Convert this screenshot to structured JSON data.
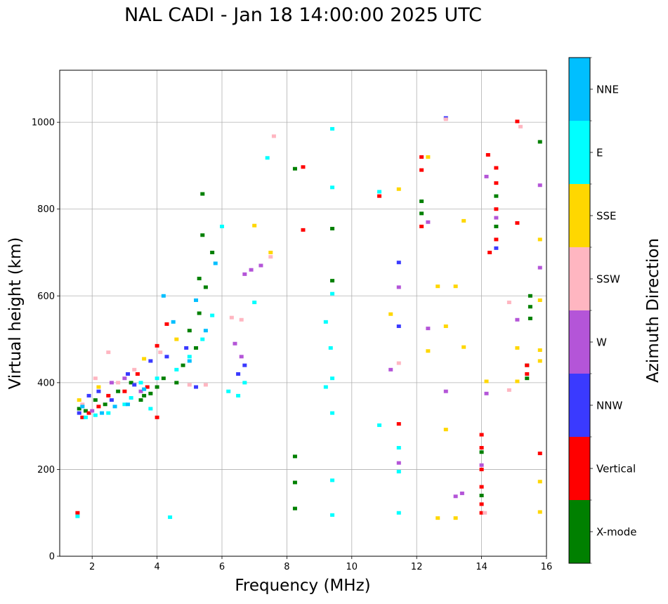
{
  "chart_data": {
    "type": "scatter",
    "title": "NAL CADI - Jan 18 14:00:00 2025 UTC",
    "xlabel": "Frequency (MHz)",
    "ylabel": "Virtual height (km)",
    "xlim": [
      1,
      16
    ],
    "ylim": [
      0,
      1120
    ],
    "xticks": [
      2,
      4,
      6,
      8,
      10,
      12,
      14,
      16
    ],
    "yticks": [
      0,
      200,
      400,
      600,
      800,
      1000
    ],
    "grid": true,
    "colorbar": {
      "label": "Azimuth Direction",
      "placement": "right",
      "categories": [
        "X-mode",
        "Vertical",
        "NNW",
        "W",
        "SSW",
        "SSE",
        "E",
        "NNE"
      ],
      "colors": [
        "#008000",
        "#ff0000",
        "#3a3aff",
        "#b455d8",
        "#ffb6c1",
        "#ffd700",
        "#00ffff",
        "#00bfff"
      ]
    },
    "series": [
      {
        "name": "X-mode",
        "points": [
          [
            1.6,
            340
          ],
          [
            1.8,
            335
          ],
          [
            2.1,
            360
          ],
          [
            2.4,
            350
          ],
          [
            2.8,
            380
          ],
          [
            3.2,
            400
          ],
          [
            3.5,
            360
          ],
          [
            3.6,
            370
          ],
          [
            3.8,
            375
          ],
          [
            4.0,
            390
          ],
          [
            4.2,
            410
          ],
          [
            4.6,
            400
          ],
          [
            4.8,
            440
          ],
          [
            5.0,
            520
          ],
          [
            5.2,
            480
          ],
          [
            5.3,
            560
          ],
          [
            5.5,
            620
          ],
          [
            5.7,
            700
          ],
          [
            5.4,
            740
          ],
          [
            5.4,
            835
          ],
          [
            5.3,
            640
          ],
          [
            8.25,
            893
          ],
          [
            8.25,
            230
          ],
          [
            8.25,
            170
          ],
          [
            8.25,
            110
          ],
          [
            9.4,
            755
          ],
          [
            9.4,
            635
          ],
          [
            12.15,
            818
          ],
          [
            12.15,
            790
          ],
          [
            14.0,
            240
          ],
          [
            14.0,
            140
          ],
          [
            14.45,
            830
          ],
          [
            14.45,
            760
          ],
          [
            15.5,
            575
          ],
          [
            15.5,
            600
          ],
          [
            15.5,
            548
          ],
          [
            15.4,
            410
          ],
          [
            15.4,
            440
          ],
          [
            15.8,
            955
          ]
        ]
      },
      {
        "name": "Vertical",
        "points": [
          [
            1.55,
            100
          ],
          [
            1.7,
            320
          ],
          [
            1.9,
            330
          ],
          [
            2.2,
            345
          ],
          [
            2.5,
            370
          ],
          [
            3.0,
            380
          ],
          [
            3.4,
            420
          ],
          [
            3.7,
            390
          ],
          [
            4.0,
            320
          ],
          [
            4.0,
            485
          ],
          [
            4.3,
            535
          ],
          [
            8.5,
            897
          ],
          [
            8.5,
            752
          ],
          [
            10.85,
            830
          ],
          [
            11.45,
            305
          ],
          [
            12.15,
            920
          ],
          [
            12.15,
            890
          ],
          [
            12.15,
            760
          ],
          [
            14.0,
            280
          ],
          [
            14.0,
            250
          ],
          [
            14.0,
            200
          ],
          [
            14.0,
            160
          ],
          [
            14.0,
            120
          ],
          [
            14.0,
            100
          ],
          [
            14.2,
            925
          ],
          [
            14.45,
            895
          ],
          [
            14.45,
            860
          ],
          [
            14.45,
            800
          ],
          [
            14.45,
            730
          ],
          [
            14.25,
            700
          ],
          [
            15.1,
            1002
          ],
          [
            15.1,
            768
          ],
          [
            15.4,
            440
          ],
          [
            15.4,
            420
          ],
          [
            15.8,
            237
          ]
        ]
      },
      {
        "name": "NNW",
        "points": [
          [
            1.6,
            330
          ],
          [
            1.9,
            370
          ],
          [
            2.2,
            380
          ],
          [
            2.6,
            360
          ],
          [
            3.1,
            420
          ],
          [
            3.3,
            395
          ],
          [
            3.8,
            450
          ],
          [
            4.3,
            460
          ],
          [
            4.9,
            480
          ],
          [
            5.2,
            390
          ],
          [
            6.5,
            420
          ],
          [
            6.7,
            440
          ],
          [
            11.45,
            530
          ],
          [
            11.45,
            677
          ],
          [
            12.9,
            1010
          ],
          [
            14.45,
            710
          ]
        ]
      },
      {
        "name": "W",
        "points": [
          [
            2.0,
            335
          ],
          [
            2.6,
            400
          ],
          [
            3.0,
            410
          ],
          [
            3.5,
            380
          ],
          [
            6.4,
            490
          ],
          [
            6.6,
            460
          ],
          [
            6.7,
            650
          ],
          [
            6.9,
            660
          ],
          [
            7.2,
            670
          ],
          [
            11.2,
            430
          ],
          [
            11.45,
            620
          ],
          [
            11.45,
            215
          ],
          [
            12.35,
            525
          ],
          [
            12.35,
            770
          ],
          [
            12.9,
            380
          ],
          [
            13.2,
            138
          ],
          [
            13.4,
            145
          ],
          [
            14.0,
            210
          ],
          [
            14.15,
            375
          ],
          [
            14.15,
            875
          ],
          [
            14.45,
            780
          ],
          [
            15.1,
            545
          ],
          [
            15.8,
            665
          ],
          [
            15.8,
            855
          ]
        ]
      },
      {
        "name": "SSW",
        "points": [
          [
            1.7,
            350
          ],
          [
            2.1,
            410
          ],
          [
            2.5,
            470
          ],
          [
            2.8,
            400
          ],
          [
            3.3,
            430
          ],
          [
            4.1,
            470
          ],
          [
            5.0,
            395
          ],
          [
            5.5,
            395
          ],
          [
            6.3,
            550
          ],
          [
            6.6,
            545
          ],
          [
            7.5,
            690
          ],
          [
            7.6,
            968
          ],
          [
            11.45,
            445
          ],
          [
            12.9,
            1007
          ],
          [
            14.1,
            100
          ],
          [
            14.85,
            585
          ],
          [
            14.85,
            383
          ],
          [
            15.2,
            990
          ]
        ]
      },
      {
        "name": "SSE",
        "points": [
          [
            1.6,
            360
          ],
          [
            2.2,
            390
          ],
          [
            3.6,
            455
          ],
          [
            4.6,
            500
          ],
          [
            7.0,
            762
          ],
          [
            7.5,
            700
          ],
          [
            11.2,
            558
          ],
          [
            11.45,
            846
          ],
          [
            12.35,
            920
          ],
          [
            12.35,
            473
          ],
          [
            12.65,
            622
          ],
          [
            12.65,
            88
          ],
          [
            12.9,
            530
          ],
          [
            12.9,
            292
          ],
          [
            13.2,
            622
          ],
          [
            13.2,
            88
          ],
          [
            13.45,
            773
          ],
          [
            13.45,
            482
          ],
          [
            14.15,
            403
          ],
          [
            15.1,
            480
          ],
          [
            15.1,
            403
          ],
          [
            15.8,
            730
          ],
          [
            15.8,
            590
          ],
          [
            15.8,
            475
          ],
          [
            15.8,
            450
          ],
          [
            15.8,
            172
          ],
          [
            15.8,
            102
          ]
        ]
      },
      {
        "name": "E",
        "points": [
          [
            1.55,
            92
          ],
          [
            1.8,
            320
          ],
          [
            2.1,
            325
          ],
          [
            2.5,
            330
          ],
          [
            3.0,
            350
          ],
          [
            3.2,
            365
          ],
          [
            3.5,
            400
          ],
          [
            3.8,
            340
          ],
          [
            4.0,
            410
          ],
          [
            4.4,
            90
          ],
          [
            4.6,
            430
          ],
          [
            5.0,
            460
          ],
          [
            5.4,
            500
          ],
          [
            5.7,
            555
          ],
          [
            6.0,
            760
          ],
          [
            6.2,
            380
          ],
          [
            6.5,
            370
          ],
          [
            6.7,
            400
          ],
          [
            7.0,
            585
          ],
          [
            7.4,
            918
          ],
          [
            9.2,
            540
          ],
          [
            9.2,
            390
          ],
          [
            9.35,
            480
          ],
          [
            9.4,
            985
          ],
          [
            9.4,
            850
          ],
          [
            9.4,
            605
          ],
          [
            9.4,
            410
          ],
          [
            9.4,
            330
          ],
          [
            9.4,
            175
          ],
          [
            9.4,
            95
          ],
          [
            10.85,
            840
          ],
          [
            10.85,
            302
          ],
          [
            11.45,
            250
          ],
          [
            11.45,
            195
          ],
          [
            11.45,
            100
          ]
        ]
      },
      {
        "name": "NNE",
        "points": [
          [
            1.7,
            345
          ],
          [
            2.3,
            330
          ],
          [
            2.7,
            345
          ],
          [
            3.1,
            350
          ],
          [
            3.6,
            385
          ],
          [
            4.2,
            600
          ],
          [
            4.5,
            540
          ],
          [
            5.0,
            450
          ],
          [
            5.2,
            590
          ],
          [
            5.5,
            520
          ],
          [
            5.8,
            675
          ]
        ]
      }
    ]
  }
}
